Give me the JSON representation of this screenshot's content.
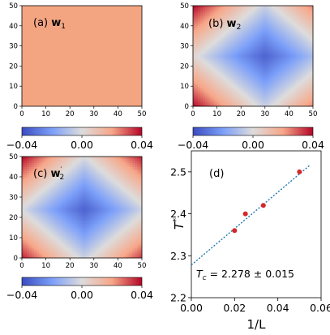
{
  "chart_data": [
    {
      "type": "heatmap",
      "panel": "(a)",
      "label_prefix": "(a)",
      "label_var": "w",
      "label_sub": "1",
      "label_prime": "",
      "x_ticks": [
        "0",
        "10",
        "20",
        "30",
        "40",
        "50"
      ],
      "y_ticks": [
        "0",
        "10",
        "20",
        "30",
        "40",
        "50"
      ],
      "xlim": [
        0,
        50
      ],
      "ylim": [
        0,
        50
      ],
      "pattern": "uniform",
      "uniform_value": 0.011,
      "colorbar": false
    },
    {
      "type": "heatmap",
      "panel": "(b)",
      "label_prefix": "(b)",
      "label_var": "w",
      "label_sub": "2",
      "label_prime": "",
      "x_ticks": [
        "0",
        "10",
        "20",
        "30",
        "40",
        "50"
      ],
      "y_ticks": [
        "0",
        "10",
        "20",
        "30",
        "40",
        "50"
      ],
      "xlim": [
        0,
        50
      ],
      "ylim": [
        0,
        50
      ],
      "pattern": "diamond",
      "center": [
        30,
        25
      ],
      "min_value": -0.034,
      "corner_value": 0.04,
      "colorbar": {
        "ticks": [
          "−0.04",
          "0.00",
          "0.04"
        ],
        "range": [
          -0.04,
          0.04
        ]
      }
    },
    {
      "type": "heatmap",
      "panel": "(c)",
      "label_prefix": "(c)",
      "label_var": "w",
      "label_sub": "2",
      "label_prime": "′",
      "x_ticks": [
        "0",
        "10",
        "20",
        "30",
        "40",
        "50"
      ],
      "y_ticks": [
        "0",
        "10",
        "20",
        "30",
        "40",
        "50"
      ],
      "xlim": [
        0,
        50
      ],
      "ylim": [
        0,
        50
      ],
      "pattern": "diamond",
      "center": [
        26,
        24
      ],
      "min_value": -0.034,
      "corner_value": 0.04,
      "colorbar": {
        "ticks": [
          "−0.04",
          "0.00",
          "0.04"
        ],
        "range": [
          -0.04,
          0.04
        ]
      }
    },
    {
      "type": "scatter",
      "panel": "(d)",
      "label": "(d)",
      "xlabel": "1/L",
      "ylabel_var": "T",
      "ylabel_sup": "*",
      "x_ticks": [
        "0.00",
        "0.02",
        "0.04",
        "0.06"
      ],
      "y_ticks": [
        "2.2",
        "2.3",
        "2.4",
        "2.5"
      ],
      "xlim": [
        0,
        0.06
      ],
      "ylim": [
        2.2,
        2.55
      ],
      "points": [
        {
          "x": 0.02,
          "y": 2.36
        },
        {
          "x": 0.025,
          "y": 2.4
        },
        {
          "x": 0.0333,
          "y": 2.42
        },
        {
          "x": 0.05,
          "y": 2.5
        }
      ],
      "fit_line": {
        "x": [
          0,
          0.055
        ],
        "y": [
          2.278,
          2.5166
        ]
      },
      "annotation_var": "T",
      "annotation_sub": "c",
      "annotation_value": " = 2.278 ± 0.015",
      "point_color": "#d62728",
      "line_color": "#1f77b4"
    }
  ]
}
